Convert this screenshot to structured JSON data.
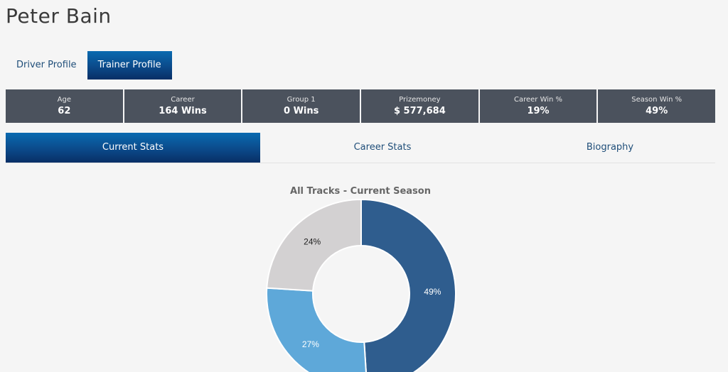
{
  "page": {
    "title": "Peter Bain"
  },
  "profile_tabs": [
    {
      "label": "Driver Profile",
      "active": false
    },
    {
      "label": "Trainer Profile",
      "active": true
    }
  ],
  "stats": [
    {
      "label": "Age",
      "value": "62"
    },
    {
      "label": "Career",
      "value": "164 Wins"
    },
    {
      "label": "Group 1",
      "value": "0 Wins"
    },
    {
      "label": "Prizemoney",
      "value": "$ 577,684"
    },
    {
      "label": "Career Win %",
      "value": "19%"
    },
    {
      "label": "Season Win %",
      "value": "49%"
    }
  ],
  "stat_tabs": [
    {
      "label": "Current Stats",
      "active": true
    },
    {
      "label": "Career Stats",
      "active": false
    },
    {
      "label": "Biography",
      "active": false
    }
  ],
  "chart_data": {
    "type": "pie",
    "title": "All Tracks - Current Season",
    "slices": [
      {
        "value": 49,
        "label": "49%",
        "color": "#2f5d8e"
      },
      {
        "value": 27,
        "label": "27%",
        "color": "#5ea8d9"
      },
      {
        "value": 24,
        "label": "24%",
        "color": "#d3d1d2"
      }
    ],
    "donut": true
  }
}
